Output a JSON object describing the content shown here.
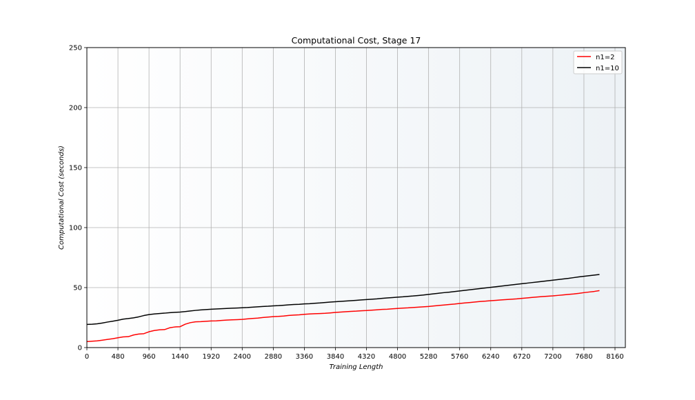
{
  "chart_data": {
    "type": "line",
    "title": "Computational Cost, Stage 17",
    "xlabel": "Training Length",
    "ylabel": "Computational Cost (seconds)",
    "xlim": [
      0,
      8320
    ],
    "ylim": [
      0,
      250
    ],
    "xticks": [
      0,
      480,
      960,
      1440,
      1920,
      2400,
      2880,
      3360,
      3840,
      4320,
      4800,
      5280,
      5760,
      6240,
      6720,
      7200,
      7680,
      8160
    ],
    "yticks": [
      0,
      50,
      100,
      150,
      200,
      250
    ],
    "grid": true,
    "legend_position": "upper right",
    "series": [
      {
        "name": "n1=2",
        "color": "#ff0000",
        "x": [
          0,
          80,
          160,
          240,
          320,
          400,
          480,
          560,
          640,
          720,
          800,
          880,
          960,
          1040,
          1120,
          1200,
          1280,
          1360,
          1440,
          1520,
          1600,
          1680,
          1760,
          1840,
          1920,
          2000,
          2080,
          2160,
          2240,
          2320,
          2400,
          2480,
          2560,
          2640,
          2720,
          2800,
          2880,
          2960,
          3040,
          3120,
          3200,
          3280,
          3360,
          3440,
          3520,
          3600,
          3680,
          3760,
          3840,
          3920,
          4000,
          4080,
          4160,
          4240,
          4320,
          4400,
          4480,
          4560,
          4640,
          4720,
          4800,
          4880,
          4960,
          5040,
          5120,
          5200,
          5280,
          5360,
          5440,
          5520,
          5600,
          5680,
          5760,
          5840,
          5920,
          6000,
          6080,
          6160,
          6240,
          6320,
          6400,
          6480,
          6560,
          6640,
          6720,
          6800,
          6880,
          6960,
          7040,
          7120,
          7200,
          7280,
          7360,
          7440,
          7520,
          7600,
          7680,
          7760,
          7840,
          7920
        ],
        "y": [
          5.0,
          5.3,
          5.6,
          6.2,
          6.8,
          7.4,
          8.2,
          8.9,
          9.1,
          10.5,
          11.3,
          11.6,
          13.2,
          14.2,
          14.8,
          15.0,
          16.5,
          17.2,
          17.4,
          19.5,
          20.8,
          21.5,
          21.6,
          21.9,
          22.2,
          22.3,
          22.6,
          22.9,
          23.1,
          23.3,
          23.5,
          23.9,
          24.3,
          24.6,
          25.1,
          25.4,
          25.8,
          26.0,
          26.3,
          26.8,
          27.1,
          27.3,
          27.7,
          28.0,
          28.2,
          28.4,
          28.6,
          28.9,
          29.3,
          29.6,
          29.9,
          30.2,
          30.4,
          30.7,
          30.9,
          31.2,
          31.5,
          31.8,
          32.0,
          32.3,
          32.6,
          32.9,
          33.1,
          33.4,
          33.7,
          34.0,
          34.3,
          34.7,
          35.1,
          35.5,
          35.9,
          36.3,
          36.8,
          37.2,
          37.6,
          38.0,
          38.4,
          38.7,
          39.1,
          39.4,
          39.7,
          40.0,
          40.3,
          40.6,
          41.0,
          41.4,
          41.8,
          42.2,
          42.5,
          42.8,
          43.1,
          43.5,
          43.9,
          44.3,
          44.7,
          45.2,
          45.8,
          46.3,
          46.8,
          47.5
        ]
      },
      {
        "name": "n1=10",
        "color": "#000000",
        "x": [
          0,
          80,
          160,
          240,
          320,
          400,
          480,
          560,
          640,
          720,
          800,
          880,
          960,
          1040,
          1120,
          1200,
          1280,
          1360,
          1440,
          1520,
          1600,
          1680,
          1760,
          1840,
          1920,
          2000,
          2080,
          2160,
          2240,
          2320,
          2400,
          2480,
          2560,
          2640,
          2720,
          2800,
          2880,
          2960,
          3040,
          3120,
          3200,
          3280,
          3360,
          3440,
          3520,
          3600,
          3680,
          3760,
          3840,
          3920,
          4000,
          4080,
          4160,
          4240,
          4320,
          4400,
          4480,
          4560,
          4640,
          4720,
          4800,
          4880,
          4960,
          5040,
          5120,
          5200,
          5280,
          5360,
          5440,
          5520,
          5600,
          5680,
          5760,
          5840,
          5920,
          6000,
          6080,
          6160,
          6240,
          6320,
          6400,
          6480,
          6560,
          6640,
          6720,
          6800,
          6880,
          6960,
          7040,
          7120,
          7200,
          7280,
          7360,
          7440,
          7520,
          7600,
          7680,
          7760,
          7840,
          7920
        ],
        "y": [
          19.3,
          19.5,
          19.8,
          20.5,
          21.3,
          22.0,
          22.8,
          23.7,
          24.2,
          24.8,
          25.6,
          26.7,
          27.5,
          28.0,
          28.4,
          28.7,
          29.1,
          29.4,
          29.6,
          30.0,
          30.5,
          31.0,
          31.4,
          31.7,
          32.0,
          32.2,
          32.4,
          32.6,
          32.8,
          33.0,
          33.2,
          33.4,
          33.7,
          34.0,
          34.3,
          34.5,
          34.8,
          35.0,
          35.3,
          35.6,
          35.9,
          36.1,
          36.4,
          36.6,
          36.9,
          37.2,
          37.6,
          37.9,
          38.2,
          38.5,
          38.8,
          39.1,
          39.4,
          39.7,
          40.0,
          40.3,
          40.6,
          41.0,
          41.4,
          41.7,
          42.0,
          42.3,
          42.7,
          43.0,
          43.4,
          43.8,
          44.3,
          44.8,
          45.3,
          45.8,
          46.2,
          46.7,
          47.2,
          47.7,
          48.2,
          48.7,
          49.2,
          49.7,
          50.2,
          50.7,
          51.2,
          51.7,
          52.2,
          52.7,
          53.2,
          53.7,
          54.2,
          54.7,
          55.2,
          55.7,
          56.2,
          56.7,
          57.2,
          57.7,
          58.3,
          58.9,
          59.4,
          59.9,
          60.4,
          60.9
        ]
      }
    ]
  }
}
